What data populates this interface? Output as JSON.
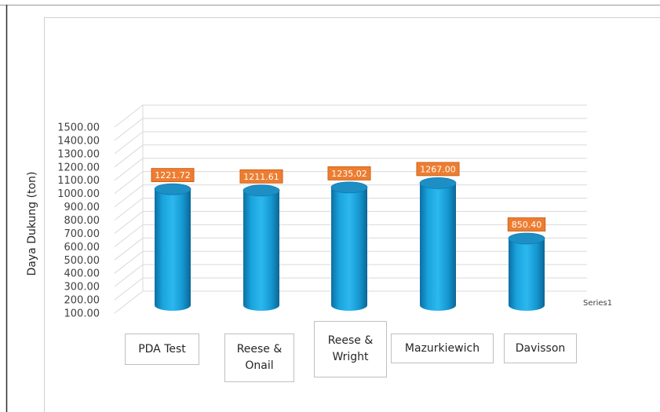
{
  "chart_data": {
    "type": "bar",
    "title": "",
    "xlabel": "",
    "ylabel": "Daya Dukung (ton)",
    "ylim": [
      100,
      1500
    ],
    "y_ticks": [
      "1500.00",
      "1400.00",
      "1300.00",
      "1200.00",
      "1100.00",
      "1000.00",
      "900.00",
      "800.00",
      "700.00",
      "600.00",
      "500.00",
      "400.00",
      "300.00",
      "200.00",
      "100.00"
    ],
    "categories": [
      "PDA Test",
      "Reese & Onail",
      "Reese & Wright",
      "Mazurkiewich",
      "Davisson"
    ],
    "series": [
      {
        "name": "Series1",
        "values": [
          1221.72,
          1211.61,
          1235.02,
          1267.0,
          850.4
        ],
        "data_labels": [
          "1221.72",
          "1211.61",
          "1235.02",
          "1267.00",
          "850.40"
        ]
      }
    ],
    "grid": true,
    "legend": "right",
    "bar_style": "3d-cylinder",
    "colors": {
      "bar": "#1aa3dc",
      "label_fill": "#ed7d31",
      "grid": "#d9d9d9"
    }
  },
  "category_labels": [
    "PDA Test",
    "Reese &\nOnail",
    "Reese &\nWright",
    "Mazurkiewich",
    "Davisson"
  ]
}
